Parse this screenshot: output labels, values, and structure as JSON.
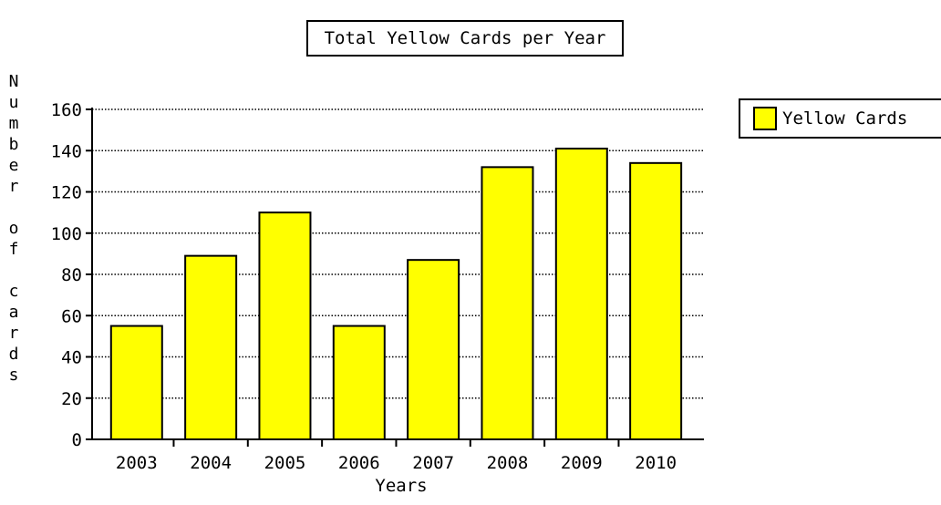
{
  "chart_data": {
    "type": "bar",
    "title": "Total Yellow Cards per Year",
    "xlabel": "Years",
    "ylabel": "Number of cards",
    "categories": [
      "2003",
      "2004",
      "2005",
      "2006",
      "2007",
      "2008",
      "2009",
      "2010"
    ],
    "series": [
      {
        "name": "Yellow Cards",
        "values": [
          55,
          89,
          110,
          55,
          87,
          132,
          141,
          134
        ],
        "color": "#ffff00"
      }
    ],
    "ylim": [
      0,
      160
    ],
    "yticks": [
      "0",
      "20",
      "40",
      "60",
      "80",
      "100",
      "120",
      "140",
      "160"
    ],
    "grid": "horizontal dotted",
    "legend_position": "top-right"
  }
}
